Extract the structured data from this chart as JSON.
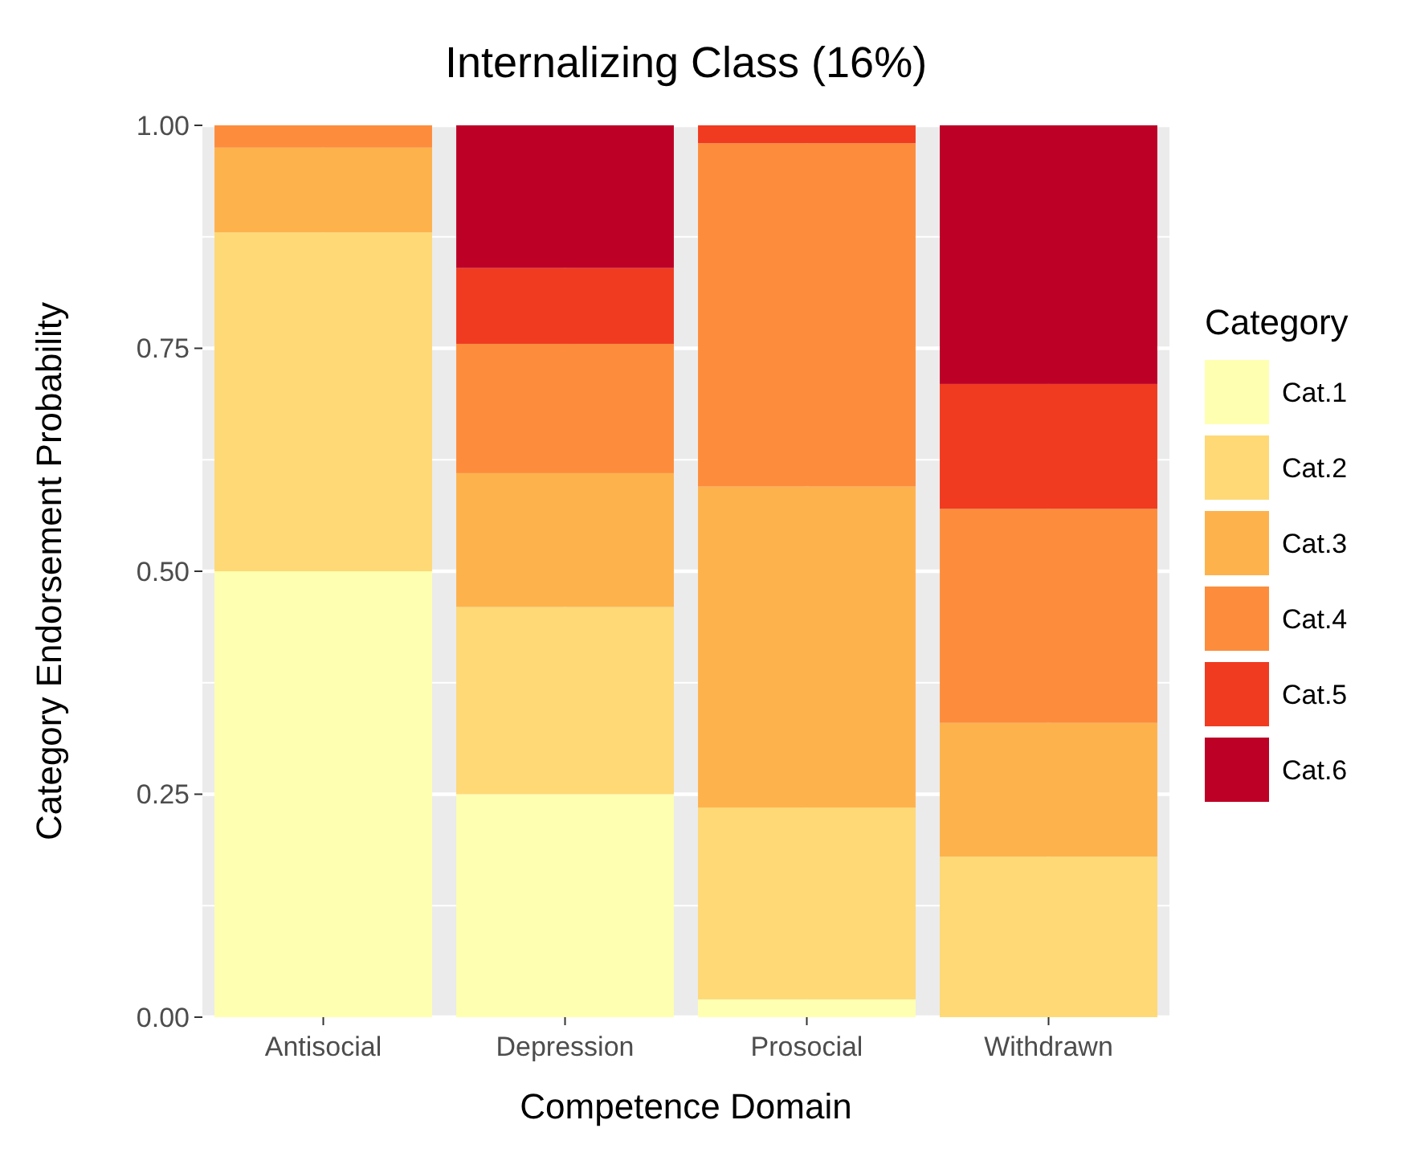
{
  "chart_data": {
    "type": "bar",
    "stacked": true,
    "title": "Internalizing Class (16%)",
    "xlabel": "Competence Domain",
    "ylabel": "Category Endorsement Probability",
    "legend_title": "Category",
    "legend": "right",
    "grid": true,
    "categories": [
      "Antisocial",
      "Depression",
      "Prosocial",
      "Withdrawn"
    ],
    "ylim": [
      0,
      1
    ],
    "yticks": [
      {
        "value": 0,
        "label": "0.00"
      },
      {
        "value": 0.25,
        "label": "0.25"
      },
      {
        "value": 0.5,
        "label": "0.50"
      },
      {
        "value": 0.75,
        "label": "0.75"
      },
      {
        "value": 1,
        "label": "1.00"
      }
    ],
    "series": [
      {
        "name": "Cat.1",
        "color": "#ffffb2",
        "values": [
          0.5,
          0.25,
          0.02,
          0
        ]
      },
      {
        "name": "Cat.2",
        "color": "#fed976",
        "values": [
          0.38,
          0.21,
          0.215,
          0.18
        ]
      },
      {
        "name": "Cat.3",
        "color": "#feb24c",
        "values": [
          0.095,
          0.15,
          0.36,
          0.15
        ]
      },
      {
        "name": "Cat.4",
        "color": "#fd8d3c",
        "values": [
          0.025,
          0.145,
          0.385,
          0.24
        ]
      },
      {
        "name": "Cat.5",
        "color": "#f03b20",
        "values": [
          0,
          0.085,
          0.02,
          0.14
        ]
      },
      {
        "name": "Cat.6",
        "color": "#bd0026",
        "values": [
          0,
          0.16,
          0,
          0.29
        ]
      }
    ]
  }
}
